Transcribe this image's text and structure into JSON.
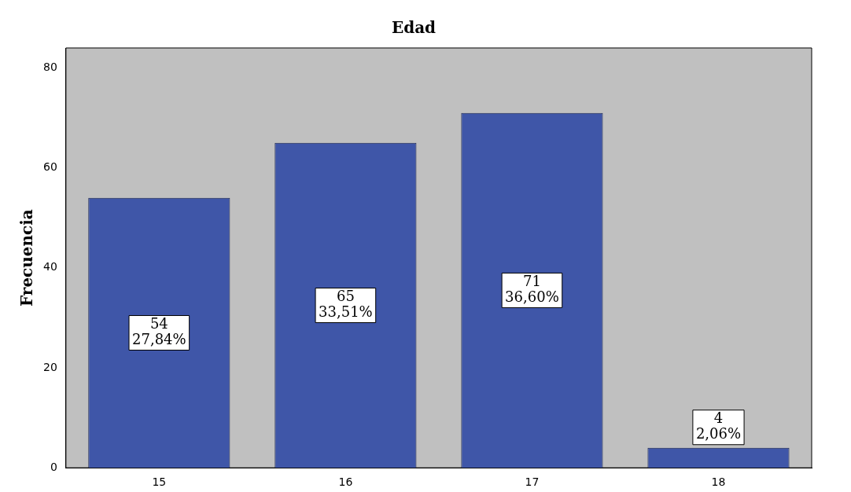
{
  "chart_data": {
    "type": "bar",
    "title": "Edad",
    "ylabel": "Frecuencia",
    "categories": [
      "15",
      "16",
      "17",
      "18"
    ],
    "values": [
      54,
      65,
      71,
      4
    ],
    "value_labels": [
      "54\n27,84%",
      "65\n33,51%",
      "71\n36,60%",
      "4\n2,06%"
    ],
    "color": "#3f56a8",
    "ylim": [
      0,
      84
    ],
    "yticks": [
      0,
      20,
      40,
      60,
      80
    ],
    "grid": false,
    "legend": false
  }
}
